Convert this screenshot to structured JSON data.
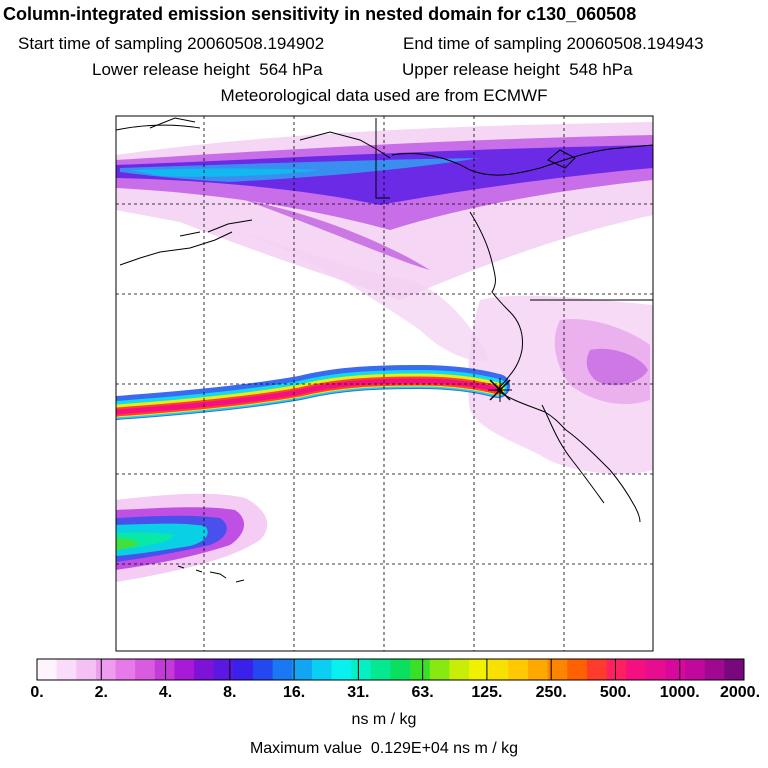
{
  "title": "Column-integrated emission sensitivity in nested domain for c130_060508",
  "sampling": {
    "start": "Start time of sampling 20060508.194902",
    "end": "End time of sampling 20060508.194943"
  },
  "release": {
    "lower": "Lower release height  564 hPa",
    "upper": "Upper release height  548 hPa"
  },
  "met_note": "Meteorological data used are from ECMWF",
  "colorbar": {
    "labels": [
      "0.",
      "2.",
      "4.",
      "8.",
      "16.",
      "31.",
      "63.",
      "125.",
      "250.",
      "500.",
      "1000.",
      "2000."
    ],
    "colors": [
      "#fdf4fd",
      "#fadcfa",
      "#f5c1f5",
      "#ee9cee",
      "#e77ae8",
      "#d85be0",
      "#c33ad9",
      "#a81ad6",
      "#7d12d8",
      "#5a18e2",
      "#3a20ea",
      "#2448f0",
      "#1a78f2",
      "#12a6f2",
      "#0acff2",
      "#08f0f0",
      "#04f0c4",
      "#04e890",
      "#0ae060",
      "#38e028",
      "#88e810",
      "#c8ee08",
      "#f0f000",
      "#f8e000",
      "#ffc800",
      "#ffa800",
      "#ff8400",
      "#ff6000",
      "#ff3c2c",
      "#ff2060",
      "#f41080",
      "#e80c90",
      "#d8089c",
      "#c0089c",
      "#a00890",
      "#78087c"
    ],
    "unit": "ns m / kg"
  },
  "max_value": "Maximum value  0.129E+04 ns m / kg",
  "release_marker": "release-point"
}
